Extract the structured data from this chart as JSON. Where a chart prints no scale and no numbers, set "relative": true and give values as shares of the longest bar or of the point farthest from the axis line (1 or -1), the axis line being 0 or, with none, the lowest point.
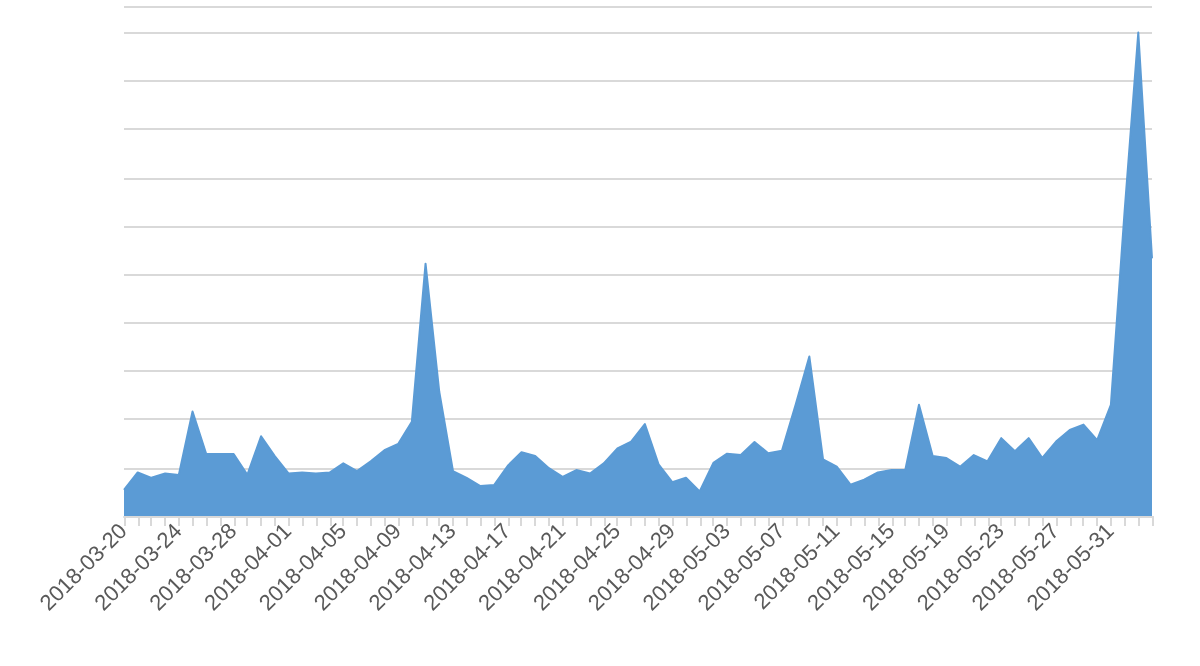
{
  "chart_data": {
    "type": "area",
    "relative": true,
    "grid": "y",
    "color": "#5b9bd5",
    "categories": [
      "2018-03-20",
      null,
      null,
      null,
      "2018-03-24",
      null,
      null,
      null,
      "2018-03-28",
      null,
      null,
      null,
      "2018-04-01",
      null,
      null,
      null,
      "2018-04-05",
      null,
      null,
      null,
      "2018-04-09",
      null,
      null,
      null,
      "2018-04-13",
      null,
      null,
      null,
      "2018-04-17",
      null,
      null,
      null,
      "2018-04-21",
      null,
      null,
      null,
      "2018-04-25",
      null,
      null,
      null,
      "2018-04-29",
      null,
      null,
      null,
      "2018-05-03",
      null,
      null,
      null,
      "2018-05-07",
      null,
      null,
      null,
      "2018-05-11",
      null,
      null,
      null,
      "2018-05-15",
      null,
      null,
      null,
      "2018-05-19",
      null,
      null,
      null,
      "2018-05-23",
      null,
      null,
      null,
      "2018-05-27",
      null,
      null,
      null,
      "2018-05-31",
      null,
      null,
      null
    ],
    "values": [
      0.054,
      0.09,
      0.079,
      0.088,
      0.085,
      0.216,
      0.128,
      0.128,
      0.128,
      0.085,
      0.165,
      0.124,
      0.088,
      0.09,
      0.088,
      0.09,
      0.109,
      0.093,
      0.113,
      0.136,
      0.149,
      0.195,
      0.522,
      0.257,
      0.093,
      0.079,
      0.062,
      0.064,
      0.104,
      0.132,
      0.124,
      0.099,
      0.081,
      0.095,
      0.088,
      0.109,
      0.14,
      0.154,
      0.19,
      0.107,
      0.07,
      0.079,
      0.051,
      0.11,
      0.129,
      0.126,
      0.153,
      0.13,
      0.135,
      0.23,
      0.33,
      0.117,
      0.102,
      0.065,
      0.075,
      0.09,
      0.095,
      0.095,
      0.23,
      0.124,
      0.12,
      0.102,
      0.126,
      0.113,
      0.161,
      0.134,
      0.161,
      0.12,
      0.154,
      0.178,
      0.189,
      0.157,
      0.23,
      0.63,
      1.0,
      0.533
    ]
  }
}
